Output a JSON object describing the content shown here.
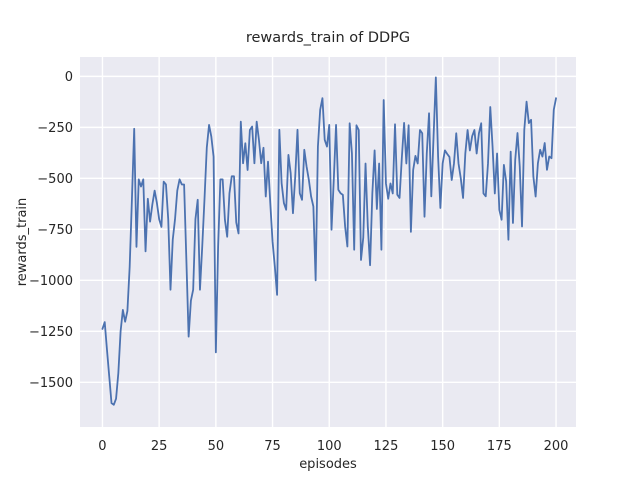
{
  "figure": {
    "title": "rewards_train of DDPG",
    "xlabel": "episodes",
    "ylabel": "rewards_train"
  },
  "chart_data": {
    "type": "line",
    "title": "rewards_train of DDPG",
    "xlabel": "episodes",
    "ylabel": "rewards_train",
    "legend": "none",
    "grid": true,
    "style": "seaborn-darkgrid",
    "line_color": "#4c72b0",
    "plot_bg_color": "#eaeaf2",
    "grid_color": "#ffffff",
    "text_color": "#262626",
    "xlim": [
      -9.9,
      208.8
    ],
    "ylim": [
      -1719,
      95
    ],
    "x_start": 0,
    "x_step": 1,
    "x_end": 200,
    "xticks": {
      "values": [
        0,
        25,
        50,
        75,
        100,
        125,
        150,
        175,
        200
      ],
      "labels": [
        "0",
        "25",
        "50",
        "75",
        "100",
        "125",
        "150",
        "175",
        "200"
      ]
    },
    "yticks": {
      "values": [
        0,
        -250,
        -500,
        -750,
        -1000,
        -1250,
        -1500
      ],
      "labels": [
        "0",
        "−250",
        "−500",
        "−750",
        "−1000",
        "−1250",
        "−1500"
      ]
    },
    "values": [
      -1238,
      -1205,
      -1341,
      -1472,
      -1602,
      -1610,
      -1580,
      -1455,
      -1250,
      -1145,
      -1203,
      -1150,
      -934,
      -600,
      -257,
      -836,
      -505,
      -540,
      -505,
      -858,
      -600,
      -712,
      -628,
      -560,
      -620,
      -700,
      -738,
      -516,
      -530,
      -700,
      -1046,
      -800,
      -700,
      -560,
      -505,
      -530,
      -530,
      -900,
      -1276,
      -1100,
      -1046,
      -700,
      -605,
      -1046,
      -834,
      -600,
      -350,
      -238,
      -295,
      -393,
      -1353,
      -834,
      -505,
      -505,
      -703,
      -786,
      -573,
      -490,
      -490,
      -716,
      -770,
      -222,
      -426,
      -328,
      -459,
      -263,
      -246,
      -426,
      -222,
      -311,
      -426,
      -350,
      -589,
      -418,
      -621,
      -810,
      -932,
      -1071,
      -262,
      -524,
      -621,
      -654,
      -385,
      -475,
      -671,
      -491,
      -262,
      -573,
      -605,
      -360,
      -442,
      -507,
      -589,
      -638,
      -1000,
      -344,
      -164,
      -107,
      -311,
      -344,
      -238,
      -752,
      -507,
      -238,
      -556,
      -573,
      -581,
      -736,
      -834,
      -230,
      -378,
      -850,
      -240,
      -263,
      -900,
      -790,
      -427,
      -735,
      -926,
      -574,
      -363,
      -650,
      -427,
      -850,
      -116,
      -525,
      -600,
      -525,
      -574,
      -235,
      -580,
      -596,
      -400,
      -228,
      -427,
      -240,
      -762,
      -459,
      -390,
      -427,
      -263,
      -279,
      -688,
      -378,
      -181,
      -588,
      -294,
      -5,
      -395,
      -645,
      -427,
      -363,
      -380,
      -395,
      -508,
      -427,
      -279,
      -427,
      -500,
      -596,
      -378,
      -263,
      -363,
      -294,
      -263,
      -378,
      -279,
      -230,
      -574,
      -588,
      -427,
      -150,
      -343,
      -574,
      -378,
      -654,
      -703,
      -434,
      -515,
      -801,
      -369,
      -719,
      -409,
      -278,
      -442,
      -736,
      -262,
      -124,
      -229,
      -213,
      -491,
      -589,
      -426,
      -360,
      -393,
      -327,
      -458,
      -393,
      -401,
      -164,
      -107
    ]
  }
}
